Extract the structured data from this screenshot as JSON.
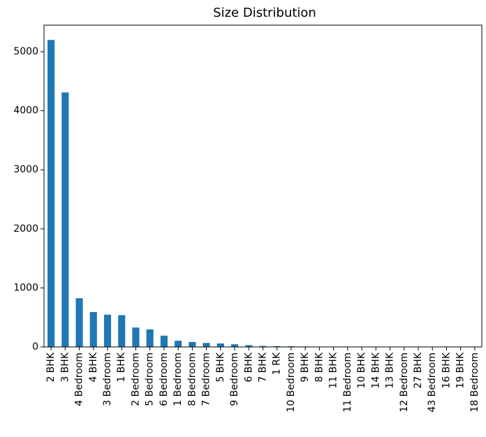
{
  "chart_data": {
    "type": "bar",
    "title": "Size Distribution",
    "xlabel": "",
    "ylabel": "",
    "categories": [
      "2 BHK",
      "3 BHK",
      "4 Bedroom",
      "4 BHK",
      "3 Bedroom",
      "1 BHK",
      "2 Bedroom",
      "5 Bedroom",
      "6 Bedroom",
      "1 Bedroom",
      "8 Bedroom",
      "7 Bedroom",
      "5 BHK",
      "9 Bedroom",
      "6 BHK",
      "7 BHK",
      "1 RK",
      "10 Bedroom",
      "9 BHK",
      "8 BHK",
      "11 BHK",
      "11 Bedroom",
      "10 BHK",
      "14 BHK",
      "13 BHK",
      "12 Bedroom",
      "27 BHK",
      "43 Bedroom",
      "16 BHK",
      "19 BHK",
      "18 Bedroom"
    ],
    "values": [
      5199,
      4310,
      826,
      591,
      547,
      538,
      329,
      297,
      191,
      105,
      84,
      68,
      59,
      45,
      30,
      17,
      13,
      12,
      8,
      5,
      2,
      2,
      2,
      1,
      1,
      1,
      1,
      1,
      1,
      1,
      1
    ],
    "ylim": [
      0,
      5450
    ],
    "yticks": [
      0,
      1000,
      2000,
      3000,
      4000,
      5000
    ],
    "grid": false,
    "colors": {
      "bar": "#1f77b4"
    }
  }
}
